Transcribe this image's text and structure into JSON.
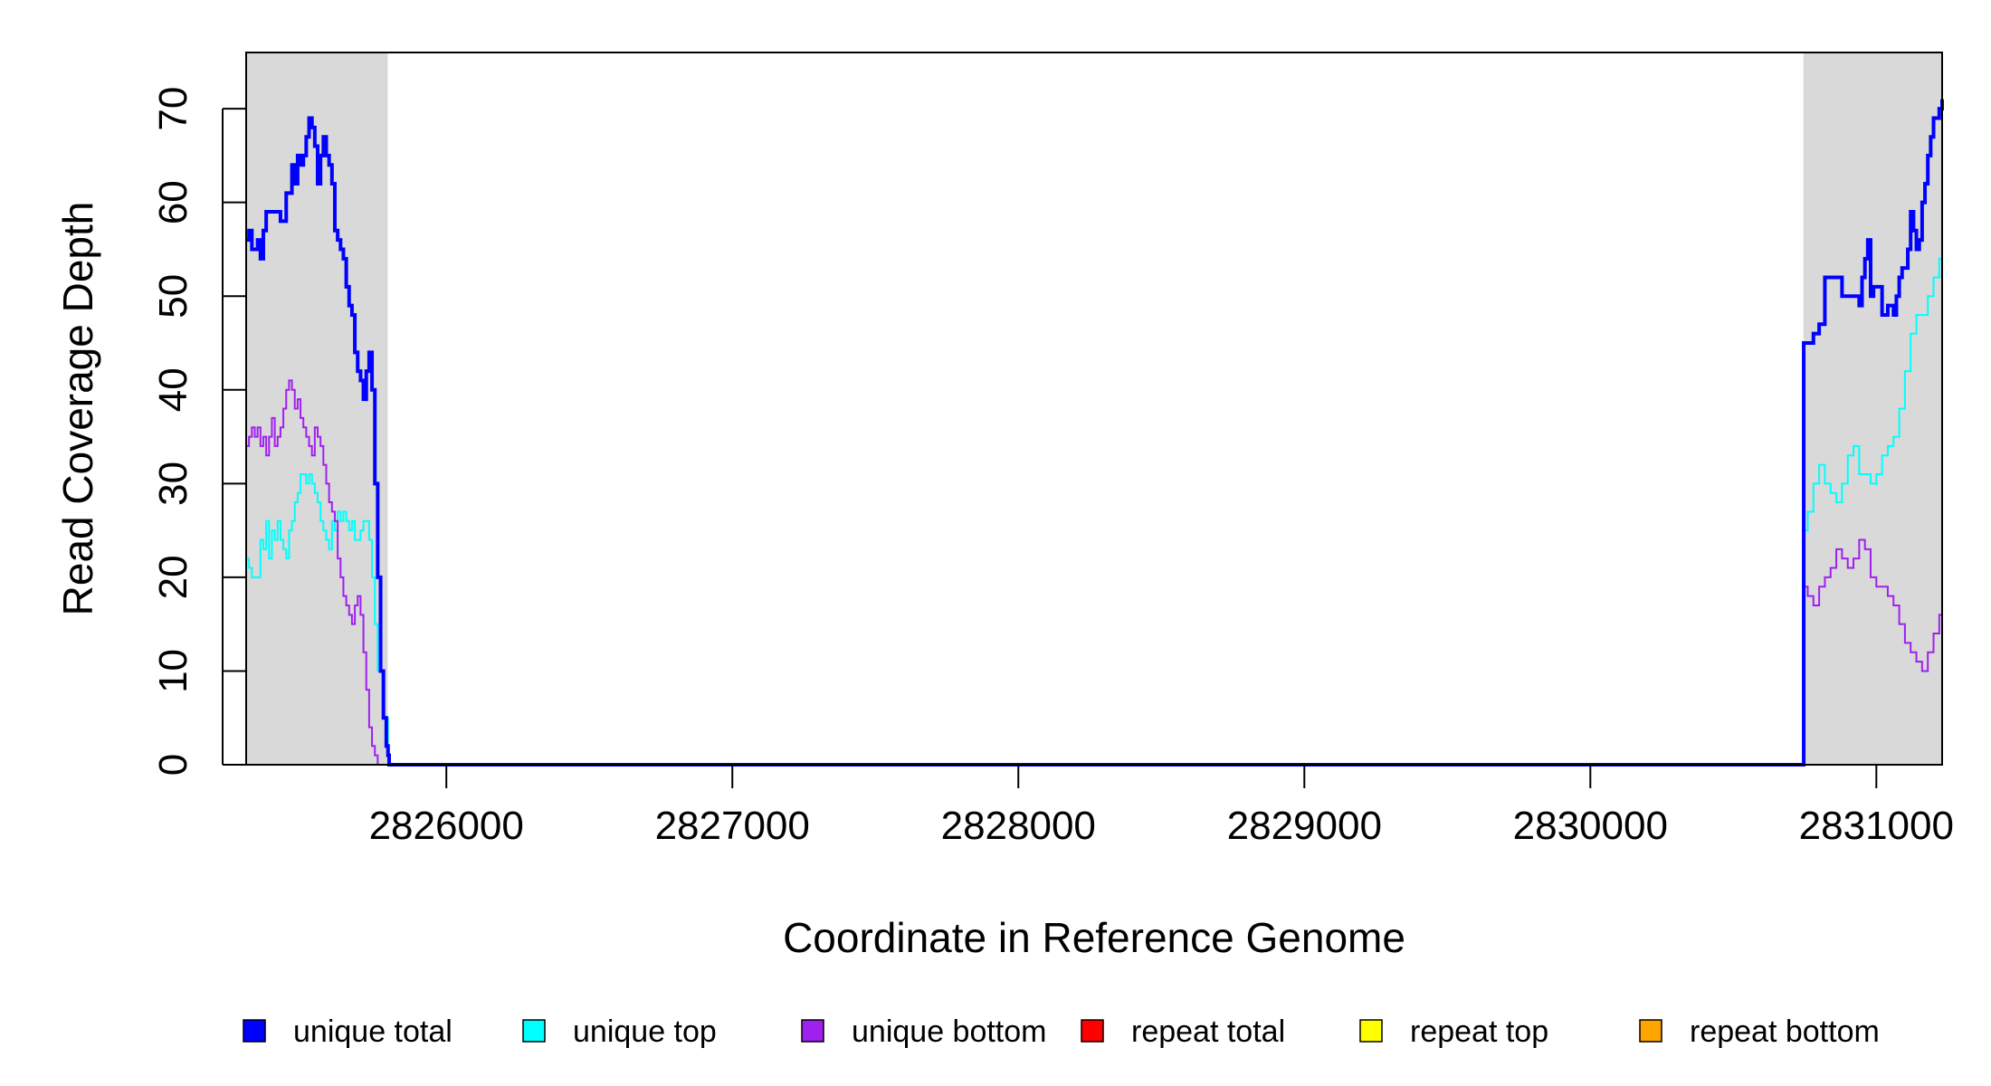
{
  "chart_data": {
    "type": "line",
    "xlabel": "Coordinate in Reference Genome",
    "ylabel": "Read Coverage Depth",
    "xlim": [
      2825300,
      2831230
    ],
    "ylim": [
      0,
      76
    ],
    "x_ticks": [
      2826000,
      2827000,
      2828000,
      2829000,
      2830000,
      2831000
    ],
    "x_tick_labels": [
      "2826000",
      "2827000",
      "2828000",
      "2829000",
      "2830000",
      "2831000"
    ],
    "y_ticks": [
      0,
      10,
      20,
      30,
      40,
      50,
      60,
      70
    ],
    "y_tick_labels": [
      "0",
      "10",
      "20",
      "30",
      "40",
      "50",
      "60",
      "70"
    ],
    "shaded_regions": [
      [
        2825300,
        2825795
      ],
      [
        2830745,
        2831230
      ]
    ],
    "shade_color": "#d9d9d9",
    "legend_position": "bottom",
    "series": [
      {
        "name": "unique total",
        "color": "#0000ff",
        "x": [
          2825300,
          2825310,
          2825320,
          2825340,
          2825350,
          2825360,
          2825370,
          2825380,
          2825400,
          2825420,
          2825440,
          2825460,
          2825470,
          2825480,
          2825490,
          2825500,
          2825510,
          2825520,
          2825530,
          2825540,
          2825550,
          2825560,
          2825570,
          2825580,
          2825590,
          2825600,
          2825610,
          2825620,
          2825630,
          2825640,
          2825650,
          2825660,
          2825670,
          2825680,
          2825690,
          2825700,
          2825710,
          2825720,
          2825730,
          2825740,
          2825750,
          2825760,
          2825770,
          2825780,
          2825790,
          2825796,
          2825800,
          2830740,
          2830746,
          2830760,
          2830780,
          2830800,
          2830820,
          2830840,
          2830860,
          2830880,
          2830900,
          2830920,
          2830940,
          2830950,
          2830960,
          2830970,
          2830980,
          2830990,
          2831000,
          2831020,
          2831040,
          2831050,
          2831060,
          2831070,
          2831080,
          2831090,
          2831100,
          2831110,
          2831120,
          2831130,
          2831140,
          2831150,
          2831160,
          2831170,
          2831180,
          2831190,
          2831200,
          2831210,
          2831220,
          2831230
        ],
        "y": [
          56,
          57,
          55,
          56,
          54,
          57,
          59,
          59,
          59,
          58,
          61,
          64,
          62,
          65,
          64,
          65,
          67,
          69,
          68,
          66,
          62,
          65,
          67,
          65,
          64,
          62,
          57,
          56,
          55,
          54,
          51,
          49,
          48,
          44,
          42,
          41,
          39,
          42,
          44,
          40,
          30,
          20,
          10,
          5,
          2,
          1,
          0,
          0,
          45,
          45,
          46,
          47,
          52,
          52,
          52,
          50,
          50,
          50,
          49,
          52,
          54,
          56,
          50,
          51,
          51,
          48,
          49,
          49,
          48,
          50,
          52,
          53,
          53,
          55,
          59,
          57,
          55,
          56,
          60,
          62,
          65,
          67,
          69,
          69,
          70,
          71
        ]
      },
      {
        "name": "unique top",
        "color": "#00ffff",
        "x": [
          2825300,
          2825310,
          2825320,
          2825330,
          2825340,
          2825350,
          2825360,
          2825370,
          2825380,
          2825390,
          2825400,
          2825410,
          2825420,
          2825430,
          2825440,
          2825450,
          2825460,
          2825470,
          2825480,
          2825490,
          2825500,
          2825510,
          2825520,
          2825530,
          2825540,
          2825550,
          2825560,
          2825570,
          2825580,
          2825590,
          2825600,
          2825610,
          2825620,
          2825630,
          2825640,
          2825650,
          2825660,
          2825670,
          2825680,
          2825690,
          2825700,
          2825710,
          2825720,
          2825730,
          2825740,
          2825750,
          2825760,
          2825780,
          2825796,
          2825800,
          2830740,
          2830746,
          2830760,
          2830780,
          2830800,
          2830820,
          2830840,
          2830860,
          2830880,
          2830900,
          2830920,
          2830940,
          2830960,
          2830980,
          2831000,
          2831020,
          2831040,
          2831060,
          2831080,
          2831100,
          2831120,
          2831140,
          2831160,
          2831180,
          2831200,
          2831220,
          2831230
        ],
        "y": [
          22,
          21,
          20,
          20,
          20,
          24,
          23,
          26,
          22,
          25,
          24,
          26,
          24,
          23,
          22,
          25,
          26,
          28,
          29,
          31,
          31,
          30,
          31,
          30,
          29,
          28,
          26,
          25,
          24,
          23,
          26,
          25,
          27,
          26,
          27,
          26,
          25,
          26,
          24,
          24,
          25,
          26,
          26,
          24,
          20,
          15,
          10,
          5,
          1,
          0,
          0,
          25,
          27,
          30,
          32,
          30,
          29,
          28,
          30,
          33,
          34,
          31,
          31,
          30,
          31,
          33,
          34,
          35,
          38,
          42,
          46,
          48,
          48,
          50,
          52,
          54,
          54
        ]
      },
      {
        "name": "unique bottom",
        "color": "#a020f0",
        "x": [
          2825300,
          2825310,
          2825320,
          2825330,
          2825340,
          2825350,
          2825360,
          2825370,
          2825380,
          2825390,
          2825400,
          2825410,
          2825420,
          2825430,
          2825440,
          2825450,
          2825460,
          2825470,
          2825480,
          2825490,
          2825500,
          2825510,
          2825520,
          2825530,
          2825540,
          2825550,
          2825560,
          2825570,
          2825580,
          2825590,
          2825600,
          2825610,
          2825620,
          2825630,
          2825640,
          2825650,
          2825660,
          2825670,
          2825680,
          2825690,
          2825700,
          2825710,
          2825720,
          2825730,
          2825740,
          2825750,
          2825760,
          2825780,
          2825796,
          2825800,
          2830740,
          2830746,
          2830760,
          2830780,
          2830800,
          2830820,
          2830840,
          2830860,
          2830880,
          2830900,
          2830920,
          2830940,
          2830960,
          2830980,
          2831000,
          2831020,
          2831040,
          2831060,
          2831080,
          2831100,
          2831120,
          2831140,
          2831160,
          2831180,
          2831200,
          2831220,
          2831230
        ],
        "y": [
          34,
          35,
          36,
          35,
          36,
          34,
          35,
          33,
          35,
          37,
          34,
          35,
          36,
          38,
          40,
          41,
          40,
          38,
          39,
          37,
          36,
          35,
          34,
          33,
          36,
          35,
          34,
          32,
          30,
          28,
          27,
          26,
          22,
          20,
          18,
          17,
          16,
          15,
          17,
          18,
          16,
          12,
          8,
          4,
          2,
          1,
          0,
          0,
          0,
          0,
          0,
          19,
          18,
          17,
          19,
          20,
          21,
          23,
          22,
          21,
          22,
          24,
          23,
          20,
          19,
          19,
          18,
          17,
          15,
          13,
          12,
          11,
          10,
          12,
          14,
          16,
          16
        ]
      },
      {
        "name": "repeat total",
        "color": "#ff0000",
        "x": [
          2825300,
          2831230
        ],
        "y": [
          0,
          0
        ]
      },
      {
        "name": "repeat top",
        "color": "#ffff00",
        "x": [
          2825300,
          2831230
        ],
        "y": [
          0,
          0
        ]
      },
      {
        "name": "repeat bottom",
        "color": "#ffa500",
        "x": [
          2825300,
          2831230
        ],
        "y": [
          0,
          0
        ]
      }
    ]
  }
}
